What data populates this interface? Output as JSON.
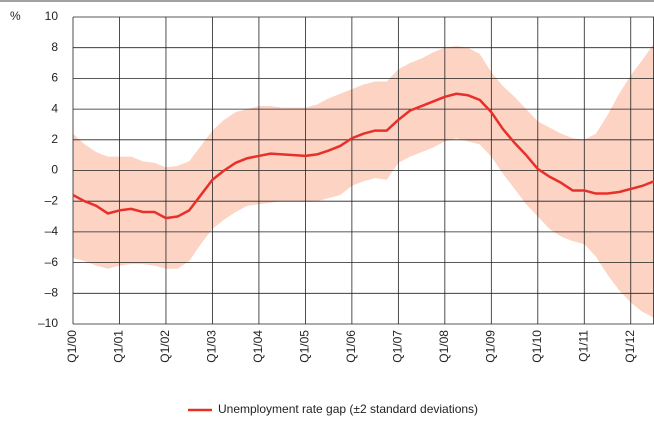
{
  "chart_data": {
    "type": "line",
    "y_label": "%",
    "categories": [
      "Q1/00",
      null,
      null,
      null,
      "Q1/01",
      null,
      null,
      null,
      "Q1/02",
      null,
      null,
      null,
      "Q1/03",
      null,
      null,
      null,
      "Q1/04",
      null,
      null,
      null,
      "Q1/05",
      null,
      null,
      null,
      "Q1/06",
      null,
      null,
      null,
      "Q1/07",
      null,
      null,
      null,
      "Q1/08",
      null,
      null,
      null,
      "Q1/09",
      null,
      null,
      null,
      "Q1/10",
      null,
      null,
      null,
      "Q1/11",
      null,
      null,
      null,
      "Q1/12",
      null,
      null
    ],
    "series": [
      {
        "name": "Unemployment rate gap (±2 standard deviations)",
        "color": "#e8302a",
        "values": [
          -1.6,
          -2.0,
          -2.3,
          -2.8,
          -2.6,
          -2.5,
          -2.7,
          -2.7,
          -3.1,
          -3.0,
          -2.6,
          -1.6,
          -0.6,
          0.0,
          0.5,
          0.8,
          0.95,
          1.1,
          1.05,
          1.0,
          0.95,
          1.05,
          1.3,
          1.6,
          2.1,
          2.4,
          2.6,
          2.6,
          3.3,
          3.9,
          4.2,
          4.5,
          4.8,
          5.0,
          4.9,
          4.6,
          3.8,
          2.7,
          1.8,
          1.0,
          0.1,
          -0.4,
          -0.8,
          -1.3,
          -1.3,
          -1.5,
          -1.5,
          -1.4,
          -1.2,
          -1.0,
          -0.7
        ]
      }
    ],
    "band": {
      "color": "#fdd3c4",
      "upper": [
        2.4,
        1.7,
        1.2,
        0.9,
        0.9,
        0.9,
        0.6,
        0.5,
        0.2,
        0.3,
        0.6,
        1.6,
        2.6,
        3.3,
        3.8,
        4.0,
        4.2,
        4.2,
        4.1,
        4.1,
        4.1,
        4.3,
        4.7,
        5.0,
        5.3,
        5.6,
        5.8,
        5.8,
        6.6,
        7.0,
        7.3,
        7.7,
        8.0,
        8.1,
        8.0,
        7.6,
        6.4,
        5.5,
        4.8,
        4.0,
        3.2,
        2.8,
        2.4,
        2.1,
        2.0,
        2.4,
        3.6,
        5.0,
        6.2,
        7.2,
        8.3
      ],
      "lower": [
        -5.7,
        -5.9,
        -6.2,
        -6.4,
        -6.2,
        -6.1,
        -6.1,
        -6.2,
        -6.4,
        -6.4,
        -5.9,
        -4.8,
        -3.8,
        -3.2,
        -2.7,
        -2.3,
        -2.2,
        -2.1,
        -2.0,
        -2.0,
        -2.0,
        -2.0,
        -1.8,
        -1.6,
        -1.0,
        -0.7,
        -0.5,
        -0.6,
        0.5,
        0.9,
        1.2,
        1.5,
        1.9,
        2.1,
        1.9,
        1.7,
        0.9,
        -0.2,
        -1.2,
        -2.2,
        -3.0,
        -3.8,
        -4.3,
        -4.6,
        -4.8,
        -5.6,
        -6.8,
        -7.8,
        -8.6,
        -9.2,
        -9.6
      ]
    },
    "ylim": [
      -10,
      10
    ],
    "yticks": [
      {
        "value": -10,
        "label": "–10"
      },
      {
        "value": -8,
        "label": "–8"
      },
      {
        "value": -6,
        "label": "–6"
      },
      {
        "value": -4,
        "label": "–4"
      },
      {
        "value": -2,
        "label": "–2"
      },
      0,
      2,
      4,
      6,
      8,
      10
    ],
    "grid": true
  }
}
